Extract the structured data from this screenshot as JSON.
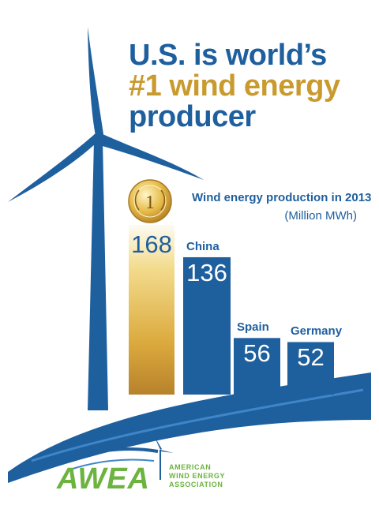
{
  "title": {
    "line1": "U.S. is world’s",
    "line2": "#1 wind energy",
    "line3": "producer"
  },
  "colors": {
    "blue": "#1e5f9e",
    "gold": "#c99a2e",
    "logo_green": "#6cb33f",
    "water": "#3f86c8"
  },
  "medal": {
    "number": "1",
    "icon": "medal-icon"
  },
  "chart_data": {
    "type": "bar",
    "title": "Wind energy production in 2013",
    "ylabel": "(Million MWh)",
    "categories": [
      "",
      "China",
      "Spain",
      "Germany"
    ],
    "values": [
      168,
      136,
      56,
      52
    ],
    "highlight_index": 0,
    "ylim": [
      0,
      168
    ]
  },
  "logo": {
    "name": "AWEA",
    "line1": "AMERICAN",
    "line2": "WIND ENERGY",
    "line3": "ASSOCIATION",
    "icon": "wind-turbine-icon"
  }
}
